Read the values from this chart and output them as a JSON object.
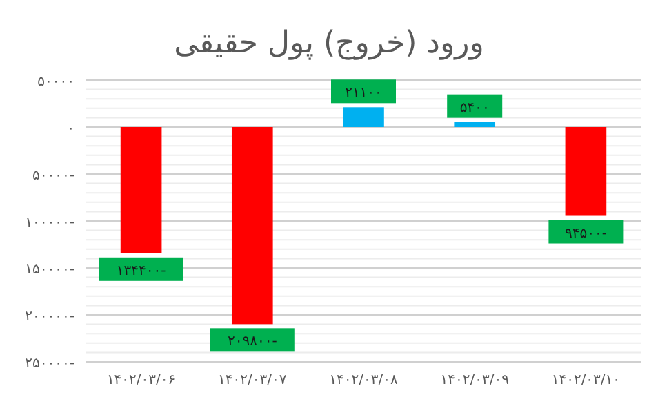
{
  "chart_data": {
    "type": "bar",
    "title": "ورود (خروج) پول حقیقی",
    "categories": [
      "۱۴۰۲/۰۳/۰۶",
      "۱۴۰۲/۰۳/۰۷",
      "۱۴۰۲/۰۳/۰۸",
      "۱۴۰۲/۰۳/۰۹",
      "۱۴۰۲/۰۳/۱۰"
    ],
    "values": [
      -134400,
      -209800,
      21100,
      5400,
      -94500
    ],
    "colors": [
      "#ff0000",
      "#ff0000",
      "#00b0f0",
      "#00b0f0",
      "#ff0000"
    ],
    "value_labels": [
      "-۱۳۴۴۰۰",
      "-۲۰۹۸۰۰",
      "۲۱۱۰۰",
      "۵۴۰۰",
      "-۹۴۵۰۰"
    ],
    "ylim": [
      -250000,
      50000
    ],
    "yticks": [
      {
        "value": 50000,
        "label": "۵۰۰۰۰"
      },
      {
        "value": 0,
        "label": "۰"
      },
      {
        "value": -50000,
        "label": "-۵۰۰۰۰"
      },
      {
        "value": -100000,
        "label": "-۱۰۰۰۰۰"
      },
      {
        "value": -150000,
        "label": "-۱۵۰۰۰۰"
      },
      {
        "value": -200000,
        "label": "-۲۰۰۰۰۰"
      },
      {
        "value": -250000,
        "label": "-۲۵۰۰۰۰"
      }
    ],
    "grid": "y"
  }
}
